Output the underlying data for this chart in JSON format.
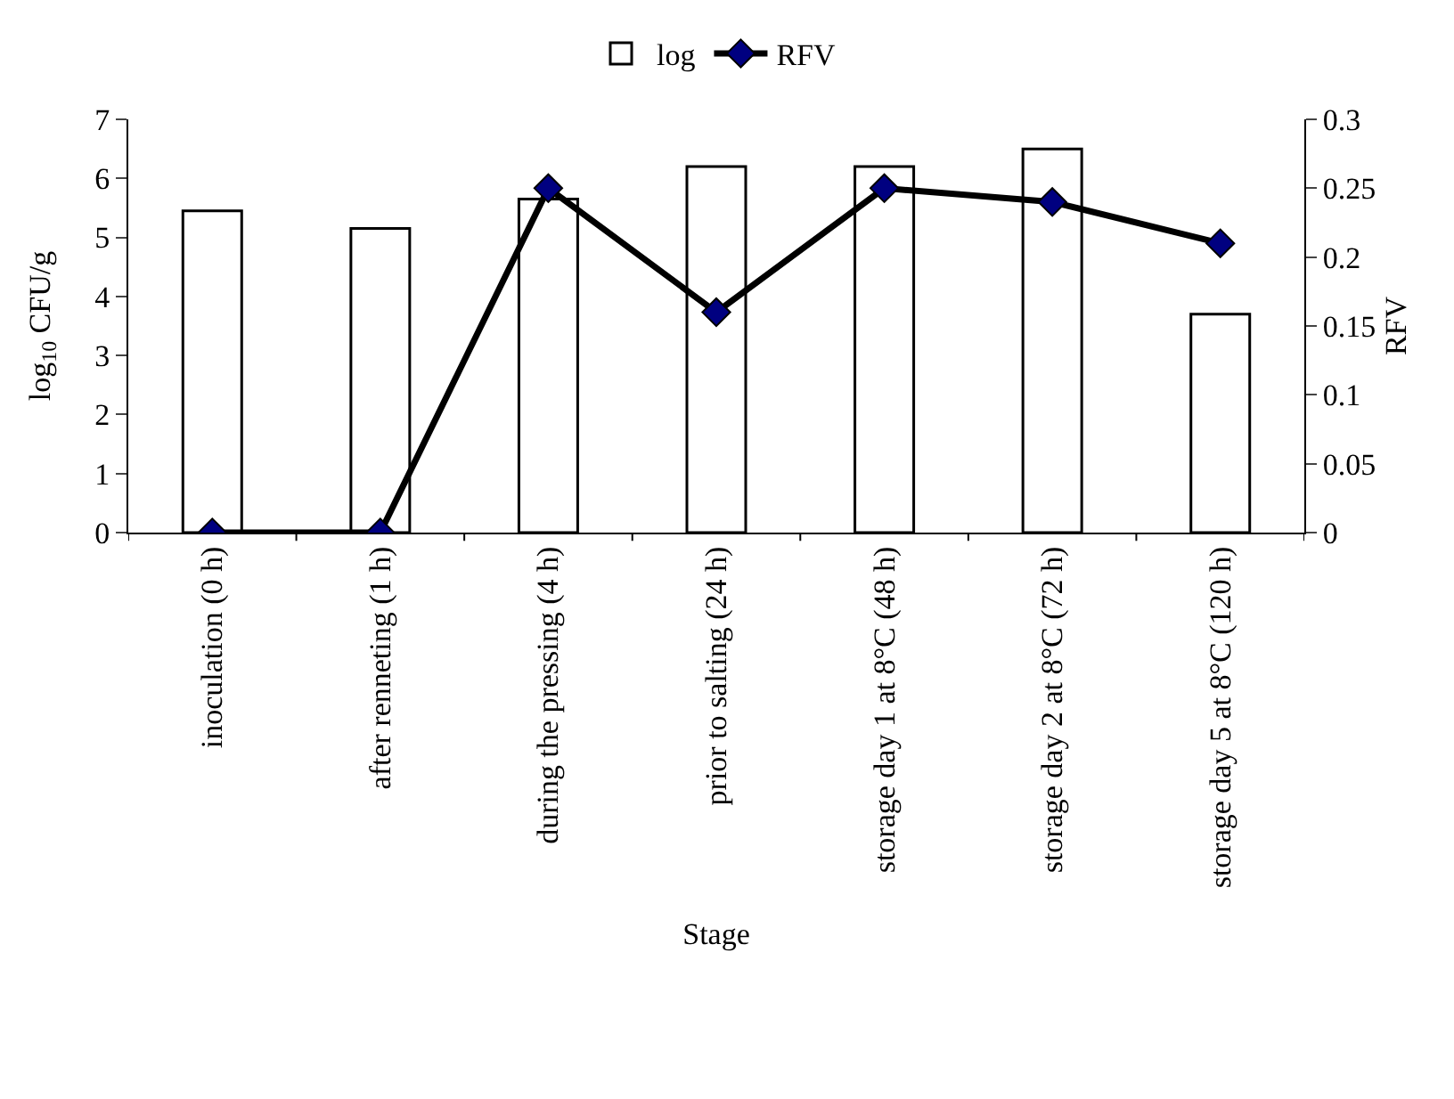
{
  "chart_data": {
    "type": "bar",
    "xlabel": "Stage",
    "ylabel": "log$_{10}$ CFU/g",
    "y2label": "RFV",
    "categories": [
      "inoculation (0 h)",
      "after renneting (1 h)",
      "during the pressing (4 h)",
      "prior to salting (24 h)",
      "storage day 1 at 8°C (48 h)",
      "storage day 2 at 8°C (72 h)",
      "storage day 5 at 8°C (120 h)"
    ],
    "series": [
      {
        "name": "log",
        "color": "#ffffff",
        "values": [
          5.45,
          5.15,
          5.65,
          6.2,
          6.2,
          6.5,
          3.7
        ]
      },
      {
        "name": "RFV",
        "type": "line",
        "axis": "y2",
        "color": "#000000",
        "marker": "diamond",
        "values": [
          0,
          0,
          0.25,
          0.16,
          0.25,
          0.24,
          0.21
        ]
      }
    ],
    "ylim": [
      0,
      7
    ],
    "yticks": [
      0,
      1,
      2,
      3,
      4,
      5,
      6,
      7
    ],
    "y2lim": [
      0,
      0.3
    ],
    "y2ticks": [
      0,
      0.05,
      0.1,
      0.15,
      0.2,
      0.25,
      0.3
    ],
    "grid": false,
    "legend": "top"
  }
}
